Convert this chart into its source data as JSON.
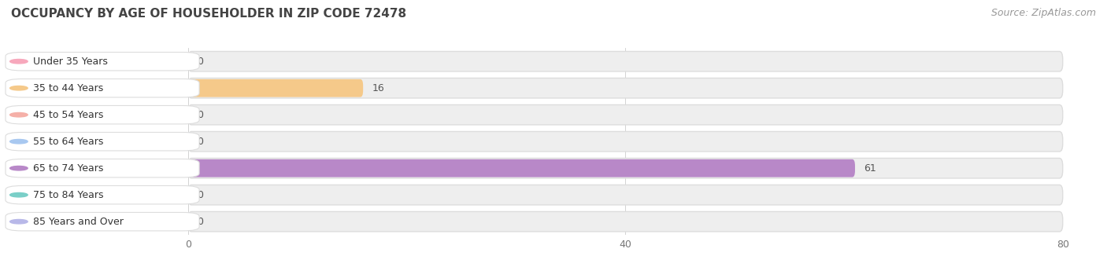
{
  "title": "OCCUPANCY BY AGE OF HOUSEHOLDER IN ZIP CODE 72478",
  "source": "Source: ZipAtlas.com",
  "categories": [
    "Under 35 Years",
    "35 to 44 Years",
    "45 to 54 Years",
    "55 to 64 Years",
    "65 to 74 Years",
    "75 to 84 Years",
    "85 Years and Over"
  ],
  "values": [
    0,
    16,
    0,
    0,
    61,
    0,
    0
  ],
  "bar_colors": [
    "#f7a8bc",
    "#f5c98a",
    "#f5b0a8",
    "#a8c8f0",
    "#b888c8",
    "#7acfc8",
    "#b8b8e8"
  ],
  "data_max": 80,
  "xticks": [
    0,
    40,
    80
  ],
  "title_fontsize": 11,
  "label_fontsize": 9,
  "value_fontsize": 9,
  "source_fontsize": 9,
  "bg_color": "#ffffff",
  "row_bg_color": "#eeeeee",
  "label_bg_color": "#ffffff"
}
